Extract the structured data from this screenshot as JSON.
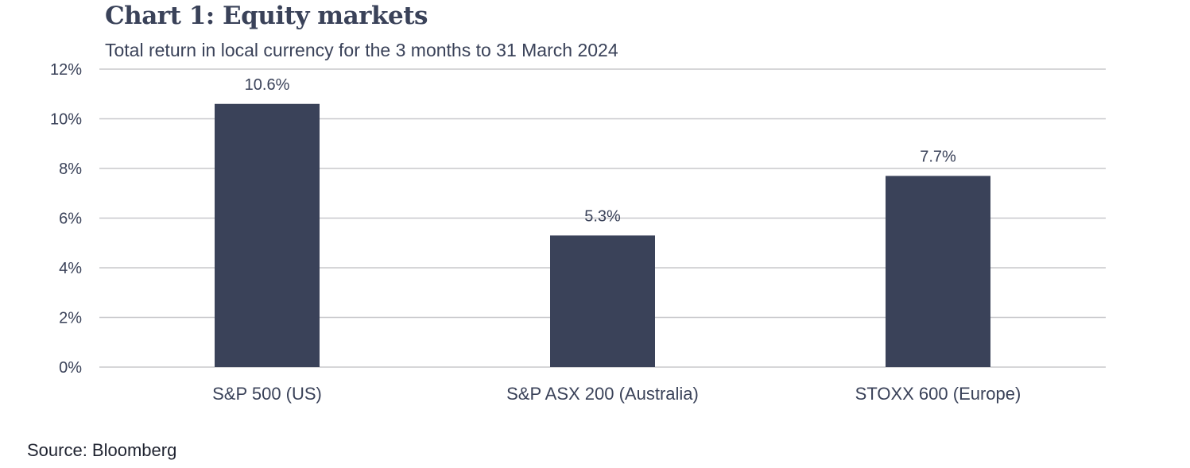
{
  "chart_data": {
    "type": "bar",
    "title": "Chart 1: Equity markets",
    "subtitle": "Total return in local currency for the 3 months to 31 March 2024",
    "categories": [
      "S&P 500 (US)",
      "S&P ASX 200 (Australia)",
      "STOXX 600 (Europe)"
    ],
    "values": [
      10.6,
      5.3,
      7.7
    ],
    "data_labels": [
      "10.6%",
      "5.3%",
      "7.7%"
    ],
    "xlabel": "",
    "ylabel": "",
    "ylim": [
      0,
      12
    ],
    "yticks": [
      0,
      2,
      4,
      6,
      8,
      10,
      12
    ],
    "ytick_labels": [
      "0%",
      "2%",
      "4%",
      "6%",
      "8%",
      "10%",
      "12%"
    ],
    "grid": true,
    "bar_color": "#3a4259",
    "grid_color": "#c8c8cc",
    "source": "Source: Bloomberg"
  }
}
